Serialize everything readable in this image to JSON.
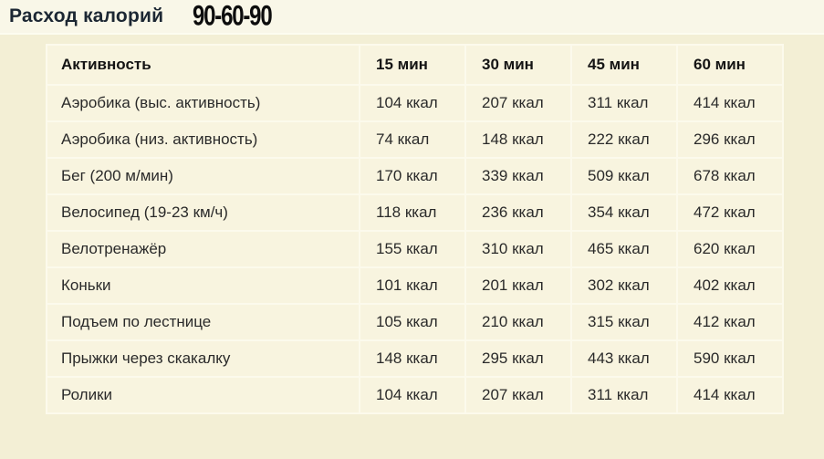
{
  "header": {
    "title": "Расход калорий",
    "logo": "90-60-90"
  },
  "table": {
    "columns": [
      "Активность",
      "15 мин",
      "30 мин",
      "45 мин",
      "60 мин"
    ],
    "rows": [
      {
        "activity": "Аэробика (выс. активность)",
        "values": [
          "104 ккал",
          "207 ккал",
          "311 ккал",
          "414 ккал"
        ]
      },
      {
        "activity": "Аэробика (низ. активность)",
        "values": [
          "74 ккал",
          "148 ккал",
          "222 ккал",
          "296 ккал"
        ]
      },
      {
        "activity": "Бег (200 м/мин)",
        "values": [
          "170 ккал",
          "339 ккал",
          "509 ккал",
          "678 ккал"
        ]
      },
      {
        "activity": "Велосипед (19-23 км/ч)",
        "values": [
          "118 ккал",
          "236 ккал",
          "354 ккал",
          "472 ккал"
        ]
      },
      {
        "activity": "Велотренажёр",
        "values": [
          "155 ккал",
          "310 ккал",
          "465 ккал",
          "620 ккал"
        ]
      },
      {
        "activity": "Коньки",
        "values": [
          "101 ккал",
          "201 ккал",
          "302 ккал",
          "402 ккал"
        ]
      },
      {
        "activity": "Подъем по лестнице",
        "values": [
          "105 ккал",
          "210 ккал",
          "315 ккал",
          "412 ккал"
        ]
      },
      {
        "activity": "Прыжки через скакалку",
        "values": [
          "148 ккал",
          "295 ккал",
          "443 ккал",
          "590 ккал"
        ]
      },
      {
        "activity": "Ролики",
        "values": [
          "104 ккал",
          "207 ккал",
          "311 ккал",
          "414 ккал"
        ]
      }
    ]
  },
  "chart_data": {
    "type": "table",
    "title": "Расход калорий 90-60-90",
    "unit": "ккал",
    "columns": [
      "Активность",
      "15 мин",
      "30 мин",
      "45 мин",
      "60 мин"
    ],
    "rows": [
      [
        "Аэробика (выс. активность)",
        104,
        207,
        311,
        414
      ],
      [
        "Аэробика (низ. активность)",
        74,
        148,
        222,
        296
      ],
      [
        "Бег (200 м/мин)",
        170,
        339,
        509,
        678
      ],
      [
        "Велосипед (19-23 км/ч)",
        118,
        236,
        354,
        472
      ],
      [
        "Велотренажёр",
        155,
        310,
        465,
        620
      ],
      [
        "Коньки",
        101,
        201,
        302,
        402
      ],
      [
        "Подъем по лестнице",
        105,
        210,
        315,
        412
      ],
      [
        "Прыжки через скакалку",
        148,
        295,
        443,
        590
      ],
      [
        "Ролики",
        104,
        207,
        311,
        414
      ]
    ]
  },
  "colors": {
    "page_background": "#f3efd5",
    "topbar_background": "#f9f7e8",
    "cell_background": "#f8f4df",
    "grid_border": "#fcfaec",
    "title_color": "#1c2733",
    "logo_color": "#0d0d0d",
    "text_color": "#2a2a2a"
  }
}
